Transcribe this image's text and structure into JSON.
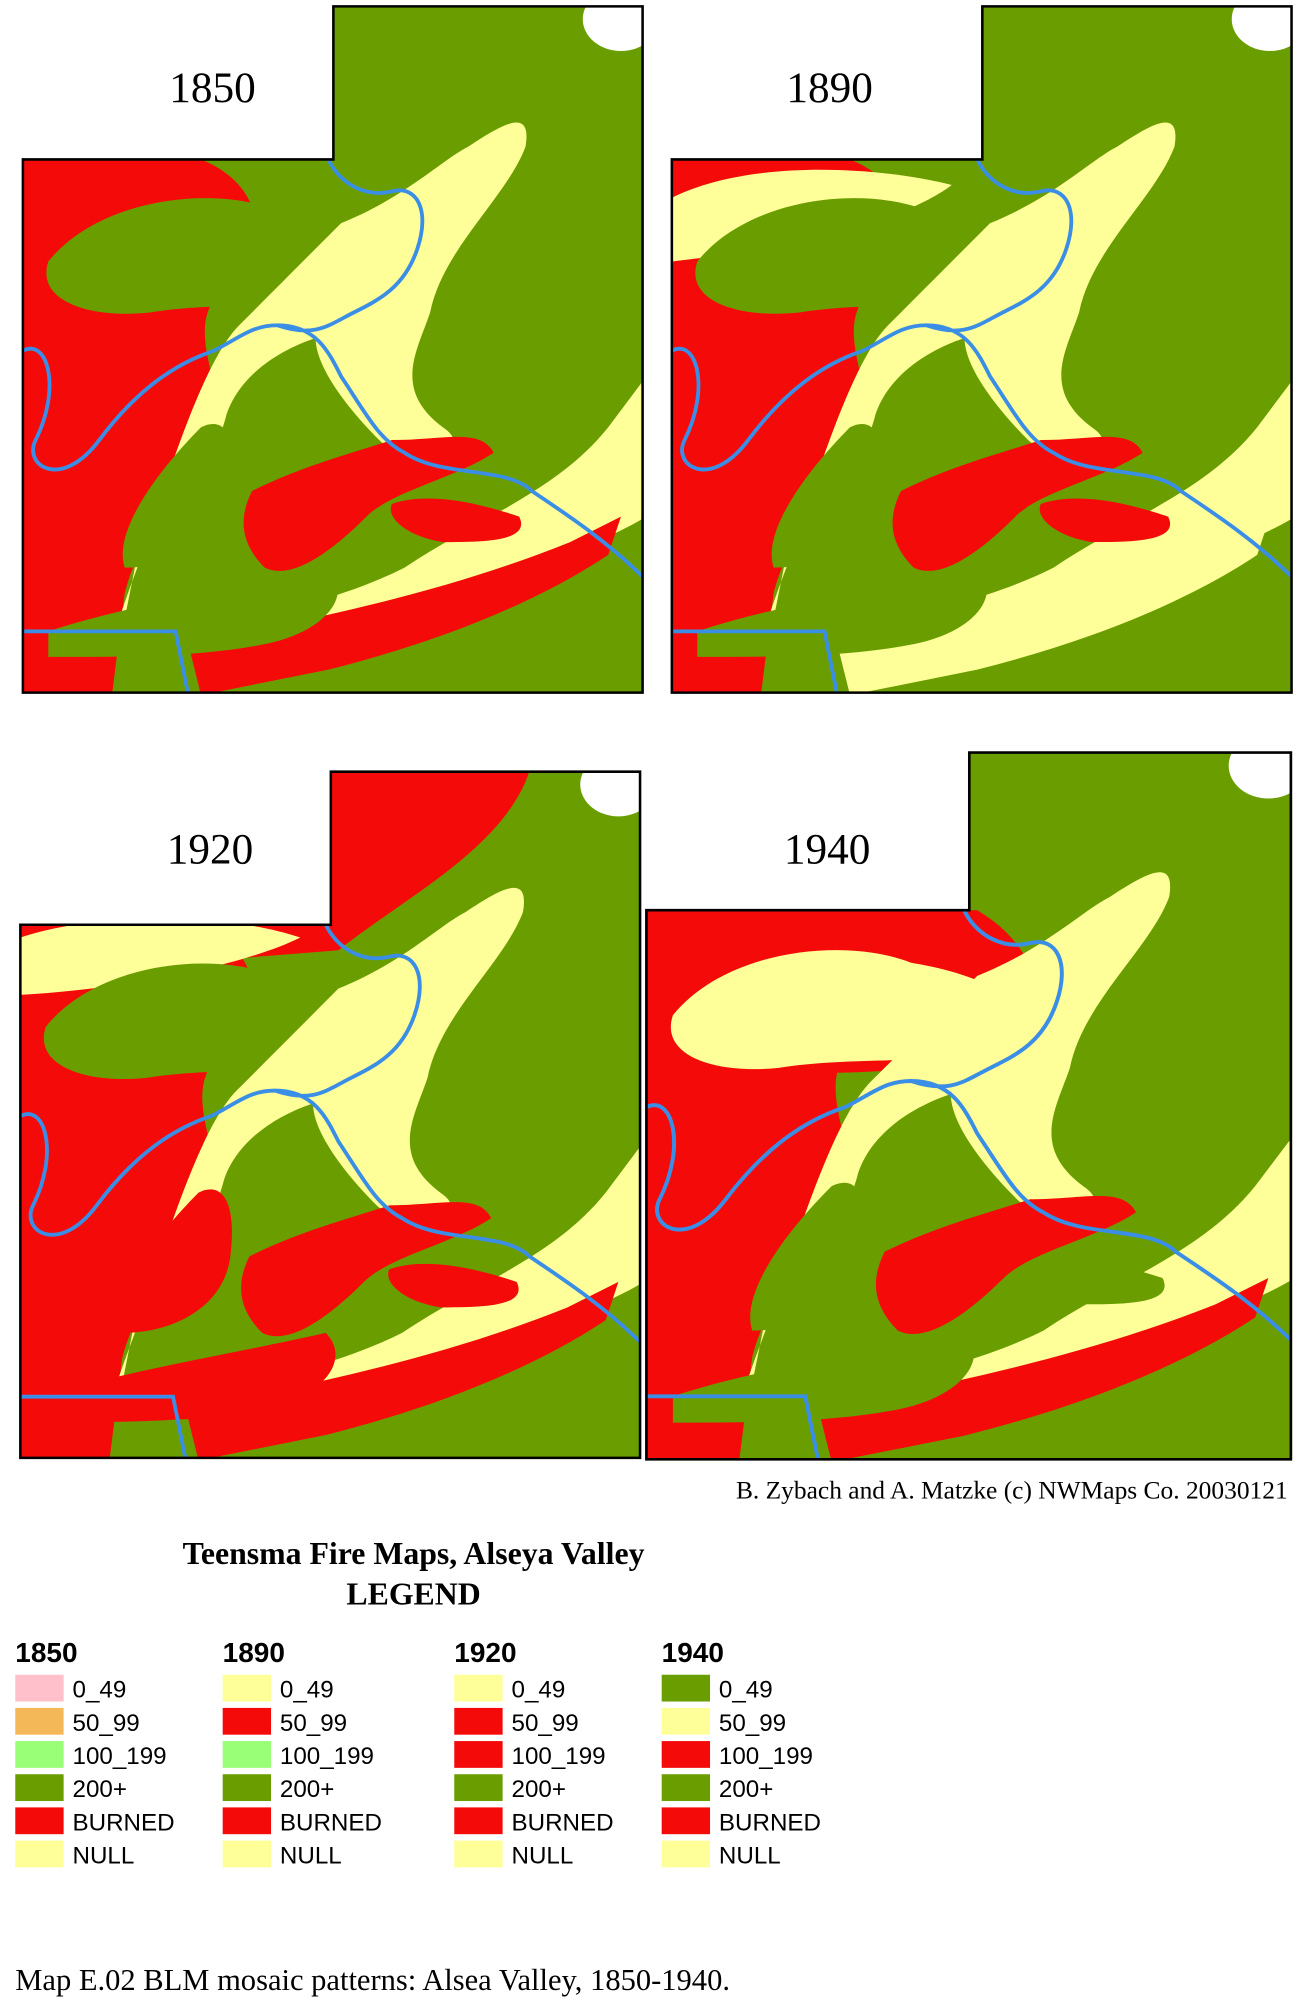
{
  "maps": [
    {
      "title": "1850"
    },
    {
      "title": "1890"
    },
    {
      "title": "1920"
    },
    {
      "title": "1940"
    }
  ],
  "credit": "B. Zybach and A. Matzke  (c) NWMaps Co. 20030121",
  "legend": {
    "title": "Teensma Fire Maps, Alseya Valley",
    "subtitle": "LEGEND",
    "columns": [
      {
        "year": "1850",
        "items": [
          {
            "label": "0_49",
            "color": "#ffc0cb"
          },
          {
            "label": "50_99",
            "color": "#f5b858"
          },
          {
            "label": "100_199",
            "color": "#99ff77"
          },
          {
            "label": "200+",
            "color": "#6a9e00"
          },
          {
            "label": "BURNED",
            "color": "#f50a0a"
          },
          {
            "label": "NULL",
            "color": "#ffff99"
          }
        ]
      },
      {
        "year": "1890",
        "items": [
          {
            "label": "0_49",
            "color": "#ffff99"
          },
          {
            "label": "50_99",
            "color": "#f50a0a"
          },
          {
            "label": "100_199",
            "color": "#99ff77"
          },
          {
            "label": "200+",
            "color": "#6a9e00"
          },
          {
            "label": "BURNED",
            "color": "#f50a0a"
          },
          {
            "label": "NULL",
            "color": "#ffff99"
          }
        ]
      },
      {
        "year": "1920",
        "items": [
          {
            "label": "0_49",
            "color": "#ffff99"
          },
          {
            "label": "50_99",
            "color": "#f50a0a"
          },
          {
            "label": "100_199",
            "color": "#f50a0a"
          },
          {
            "label": "200+",
            "color": "#6a9e00"
          },
          {
            "label": "BURNED",
            "color": "#f50a0a"
          },
          {
            "label": "NULL",
            "color": "#ffff99"
          }
        ]
      },
      {
        "year": "1940",
        "items": [
          {
            "label": "0_49",
            "color": "#6a9e00"
          },
          {
            "label": "50_99",
            "color": "#ffff99"
          },
          {
            "label": "100_199",
            "color": "#f50a0a"
          },
          {
            "label": "200+",
            "color": "#6a9e00"
          },
          {
            "label": "BURNED",
            "color": "#f50a0a"
          },
          {
            "label": "NULL",
            "color": "#ffff99"
          }
        ]
      }
    ]
  },
  "caption": "Map E.02  BLM mosaic patterns: Alsea Valley, 1850-1940."
}
